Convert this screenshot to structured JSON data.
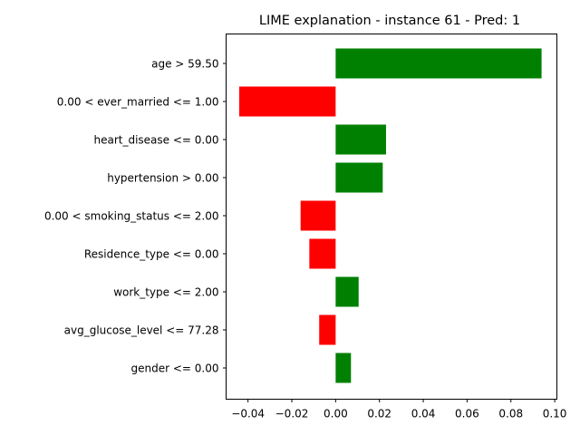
{
  "chart_data": {
    "type": "bar",
    "orientation": "horizontal",
    "title": "LIME explanation - instance 61 - Pred: 1",
    "xlabel": "",
    "ylabel": "",
    "categories": [
      "age > 59.50",
      "0.00 < ever_married <= 1.00",
      "heart_disease <= 0.00",
      "hypertension > 0.00",
      "0.00 < smoking_status <= 2.00",
      "Residence_type <= 0.00",
      "work_type <= 2.00",
      "avg_glucose_level <= 77.28",
      "gender <= 0.00"
    ],
    "values": [
      0.094,
      -0.044,
      0.023,
      0.0215,
      -0.016,
      -0.012,
      0.0105,
      -0.0075,
      0.007
    ],
    "xlim": [
      -0.05,
      0.101
    ],
    "xticks": [
      -0.04,
      -0.02,
      0.0,
      0.02,
      0.04,
      0.06,
      0.08,
      0.1
    ],
    "xtick_labels": [
      "−0.04",
      "−0.02",
      "0.00",
      "0.02",
      "0.04",
      "0.06",
      "0.08",
      "0.10"
    ],
    "colors": {
      "positive": "#008000",
      "negative": "#ff0000"
    },
    "grid": false,
    "legend": "none"
  }
}
